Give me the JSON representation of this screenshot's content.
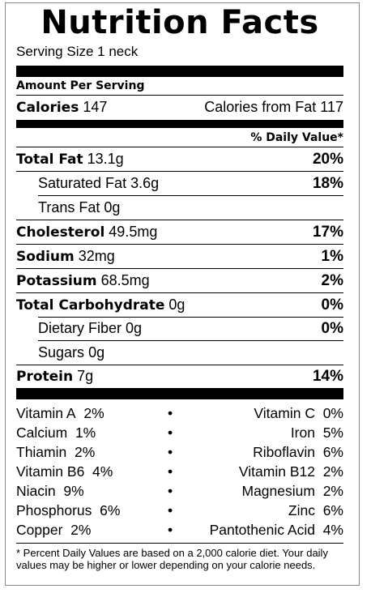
{
  "title": "Nutrition Facts",
  "serving_size": "Serving Size 1 neck",
  "amount_per_serving": "Amount Per Serving",
  "calories_label": "Calories",
  "calories_value": "147",
  "calories_from_fat": "Calories from Fat 117",
  "daily_value_header": "% Daily Value*",
  "nutrients": [
    {
      "name": "Total Fat",
      "amount": "13.1g",
      "dv": "20%"
    },
    {
      "name": "Saturated Fat",
      "amount": "3.6g",
      "dv": "18%"
    },
    {
      "name": "Trans Fat",
      "amount": "0g",
      "dv": ""
    },
    {
      "name": "Cholesterol",
      "amount": "49.5mg",
      "dv": "17%"
    },
    {
      "name": "Sodium",
      "amount": "32mg",
      "dv": "1%"
    },
    {
      "name": "Potassium",
      "amount": "68.5mg",
      "dv": "2%"
    },
    {
      "name": "Total Carbohydrate",
      "amount": "0g",
      "dv": "0%"
    },
    {
      "name": "Dietary Fiber",
      "amount": "0g",
      "dv": "0%"
    },
    {
      "name": "Sugars",
      "amount": "0g",
      "dv": ""
    },
    {
      "name": "Protein",
      "amount": "7g",
      "dv": "14%"
    }
  ],
  "vitamins": [
    {
      "left_name": "Vitamin A",
      "left_value": "2%",
      "dot": "•",
      "right_name": "Vitamin C",
      "right_value": "0%"
    },
    {
      "left_name": "Calcium",
      "left_value": "1%",
      "dot": "•",
      "right_name": "Iron",
      "right_value": "5%"
    },
    {
      "left_name": "Thiamin",
      "left_value": "2%",
      "dot": "•",
      "right_name": "Riboflavin",
      "right_value": "6%"
    },
    {
      "left_name": "Vitamin B6",
      "left_value": "4%",
      "dot": "•",
      "right_name": "Vitamin B12",
      "right_value": "2%"
    },
    {
      "left_name": "Niacin",
      "left_value": "9%",
      "dot": "•",
      "right_name": "Magnesium",
      "right_value": "2%"
    },
    {
      "left_name": "Phosphorus",
      "left_value": "6%",
      "dot": "•",
      "right_name": "Zinc",
      "right_value": "6%"
    },
    {
      "left_name": "Copper",
      "left_value": "2%",
      "dot": "•",
      "right_name": "Pantothenic Acid",
      "right_value": "4%"
    }
  ],
  "footnote": "* Percent Daily Values are based on a 2,000 calorie diet. Your daily values may be higher or lower depending on your calorie needs."
}
